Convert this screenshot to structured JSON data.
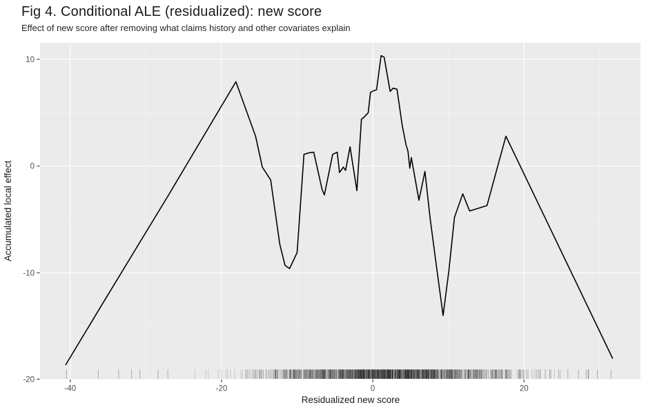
{
  "chart_data": {
    "type": "line",
    "title": "Fig 4. Conditional ALE (residualized): new score",
    "subtitle": "Effect of new score after removing what claims history and other covariates explain",
    "xlabel": "Residualized new score",
    "ylabel": "Accumulated local effect",
    "xlim": [
      -44.0,
      35.4
    ],
    "ylim": [
      -19.96,
      11.55
    ],
    "x_ticks": [
      -40,
      -20,
      0,
      20
    ],
    "x_minor_ticks": [
      -30,
      -10,
      10,
      30
    ],
    "y_ticks": [
      10,
      0,
      -10,
      -20
    ],
    "y_minor_ticks": [
      5,
      -5,
      -15
    ],
    "grid": true,
    "legend_position": "none",
    "series": [
      {
        "name": "conditional-ale",
        "color": "#000000",
        "points": [
          [
            -40.6,
            -18.6
          ],
          [
            -36.0,
            -13.2
          ],
          [
            -27.0,
            -2.7
          ],
          [
            -18.1,
            7.9
          ],
          [
            -15.5,
            2.8
          ],
          [
            -14.6,
            -0.1
          ],
          [
            -13.5,
            -1.3
          ],
          [
            -12.3,
            -7.3
          ],
          [
            -11.6,
            -9.3
          ],
          [
            -11.0,
            -9.6
          ],
          [
            -10.0,
            -8.1
          ],
          [
            -9.1,
            1.1
          ],
          [
            -8.4,
            1.25
          ],
          [
            -7.8,
            1.3
          ],
          [
            -6.7,
            -2.2
          ],
          [
            -6.4,
            -2.7
          ],
          [
            -5.3,
            1.1
          ],
          [
            -4.7,
            1.3
          ],
          [
            -4.4,
            -0.6
          ],
          [
            -3.9,
            -0.1
          ],
          [
            -3.6,
            -0.4
          ],
          [
            -3.0,
            1.8
          ],
          [
            -2.1,
            -2.3
          ],
          [
            -1.5,
            4.4
          ],
          [
            -1.2,
            4.55
          ],
          [
            -0.6,
            5.0
          ],
          [
            -0.3,
            6.9
          ],
          [
            0.1,
            7.05
          ],
          [
            0.5,
            7.15
          ],
          [
            1.1,
            10.35
          ],
          [
            1.5,
            10.2
          ],
          [
            2.0,
            8.2
          ],
          [
            2.3,
            7.0
          ],
          [
            2.7,
            7.3
          ],
          [
            3.2,
            7.2
          ],
          [
            3.9,
            3.8
          ],
          [
            4.4,
            2.0
          ],
          [
            4.65,
            1.4
          ],
          [
            4.9,
            -0.2
          ],
          [
            5.1,
            0.8
          ],
          [
            6.1,
            -3.2
          ],
          [
            6.9,
            -0.5
          ],
          [
            7.6,
            -5.0
          ],
          [
            8.4,
            -9.3
          ],
          [
            9.3,
            -14.0
          ],
          [
            10.05,
            -9.9
          ],
          [
            10.8,
            -4.8
          ],
          [
            11.9,
            -2.6
          ],
          [
            12.8,
            -4.2
          ],
          [
            13.3,
            -4.1
          ],
          [
            15.1,
            -3.7
          ],
          [
            17.6,
            2.8
          ],
          [
            31.7,
            -18.0
          ]
        ]
      }
    ],
    "rug": {
      "n": 1500,
      "seed": 7,
      "mean": 2,
      "sd": 8.5,
      "min": -40.6,
      "max": 31.7,
      "opacity": 0.16,
      "color": "#000000",
      "outliers": [
        -40.5,
        -36.3,
        -33.6,
        -31.9,
        -30.8,
        -28.4,
        -27.1,
        23.4,
        24.6,
        25.8,
        27.2,
        28.5,
        29.7,
        31.5
      ]
    },
    "colors": {
      "panel_background": "#ebebeb",
      "grid_major": "#ffffff",
      "grid_minor": "#f5f5f5",
      "line": "#000000",
      "tick_label": "#4d4d4d",
      "axis_title": "#1a1a1a",
      "tick_mark": "#333333"
    }
  }
}
